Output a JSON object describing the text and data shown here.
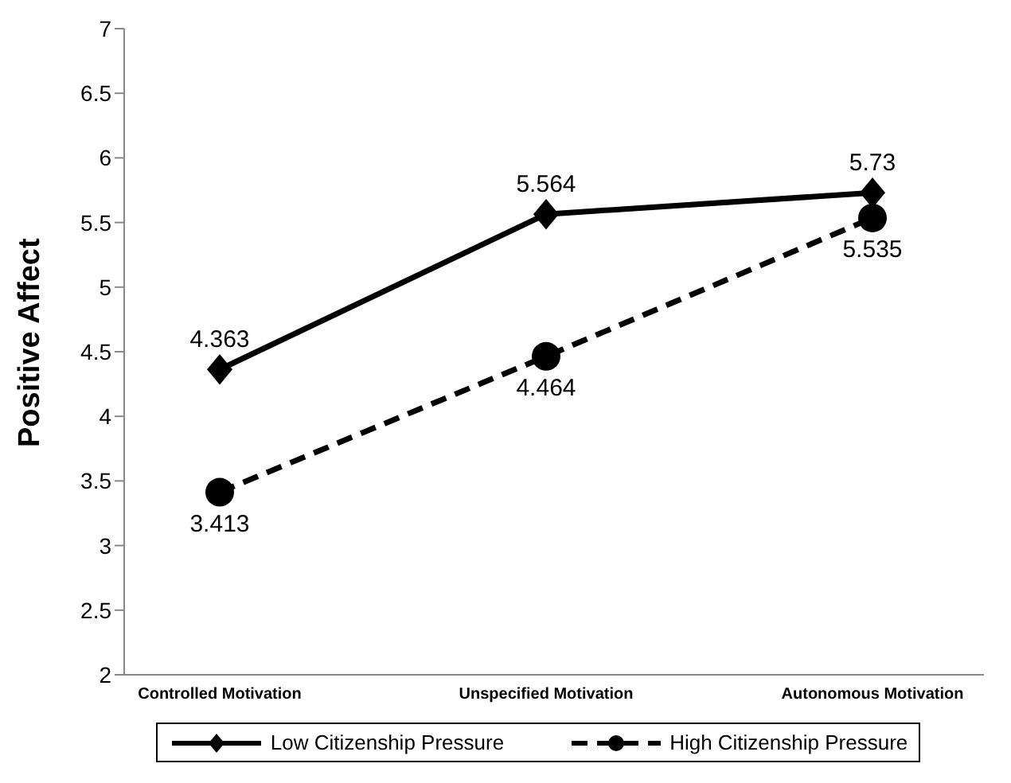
{
  "chart_data": {
    "type": "line",
    "ylabel": "Positive Affect",
    "categories": [
      "Controlled Motivation",
      "Unspecified Motivation",
      "Autonomous Motivation"
    ],
    "series": [
      {
        "name": "Low Citizenship Pressure",
        "color": "#000000",
        "values": [
          4.363,
          5.564,
          5.73
        ],
        "marker": "diamond",
        "line_style": "solid"
      },
      {
        "name": "High Citizenship Pressure",
        "color": "#000000",
        "values": [
          3.413,
          4.464,
          5.535
        ],
        "marker": "circle",
        "line_style": "dashed"
      }
    ],
    "ylim": [
      2,
      7
    ],
    "yticks": [
      2,
      2.5,
      3,
      3.5,
      4,
      4.5,
      5,
      5.5,
      6,
      6.5,
      7
    ],
    "grid": false,
    "legend": "bottom",
    "data_labels": true
  }
}
